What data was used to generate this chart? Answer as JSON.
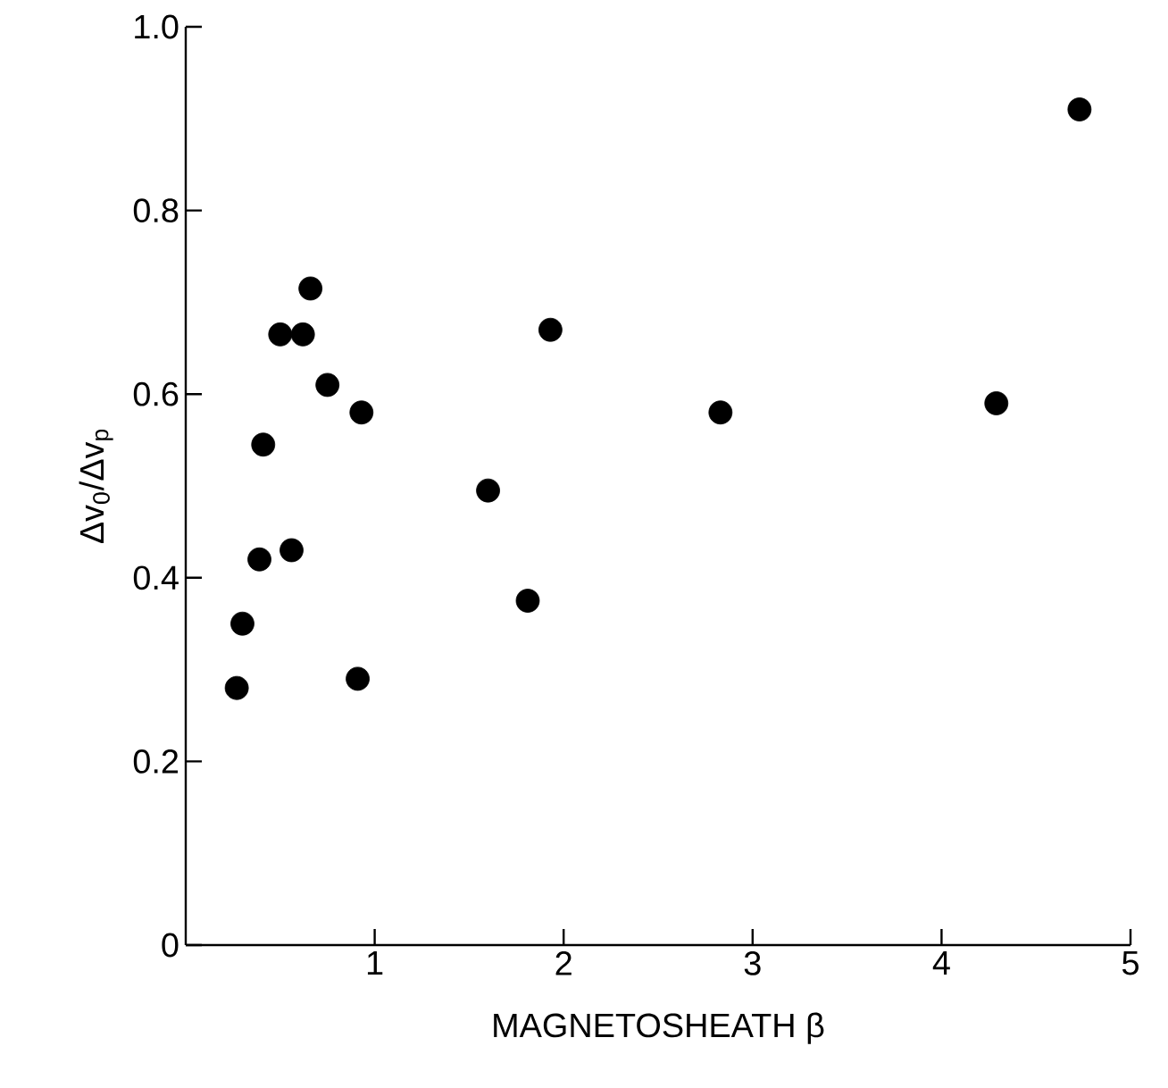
{
  "chart_data": {
    "type": "scatter",
    "xlabel": "MAGNETOSHEATH β",
    "ylabel": "Δv$_{0}$/Δv$_{p}$",
    "xlim": [
      0,
      5
    ],
    "ylim": [
      0,
      1.0
    ],
    "xticks": [
      1,
      2,
      3,
      4,
      5
    ],
    "yticks": [
      0,
      {
        "value": 0.2,
        "label": "0.2"
      },
      {
        "value": 0.4,
        "label": "0.4"
      },
      {
        "value": 0.6,
        "label": "0.6"
      },
      {
        "value": 0.8,
        "label": "0.8"
      },
      {
        "value": 1.0,
        "label": "1.0"
      }
    ],
    "marker": "circle",
    "color": "#000000",
    "x": [
      0.27,
      0.3,
      0.39,
      0.56,
      0.91,
      1.81,
      0.41,
      0.5,
      0.62,
      0.66,
      0.75,
      0.93,
      1.6,
      1.93,
      2.83,
      4.29,
      4.73
    ],
    "values": [
      0.28,
      0.35,
      0.42,
      0.43,
      0.29,
      0.375,
      0.545,
      0.665,
      0.665,
      0.715,
      0.61,
      0.58,
      0.495,
      0.67,
      0.58,
      0.59,
      0.91
    ]
  }
}
